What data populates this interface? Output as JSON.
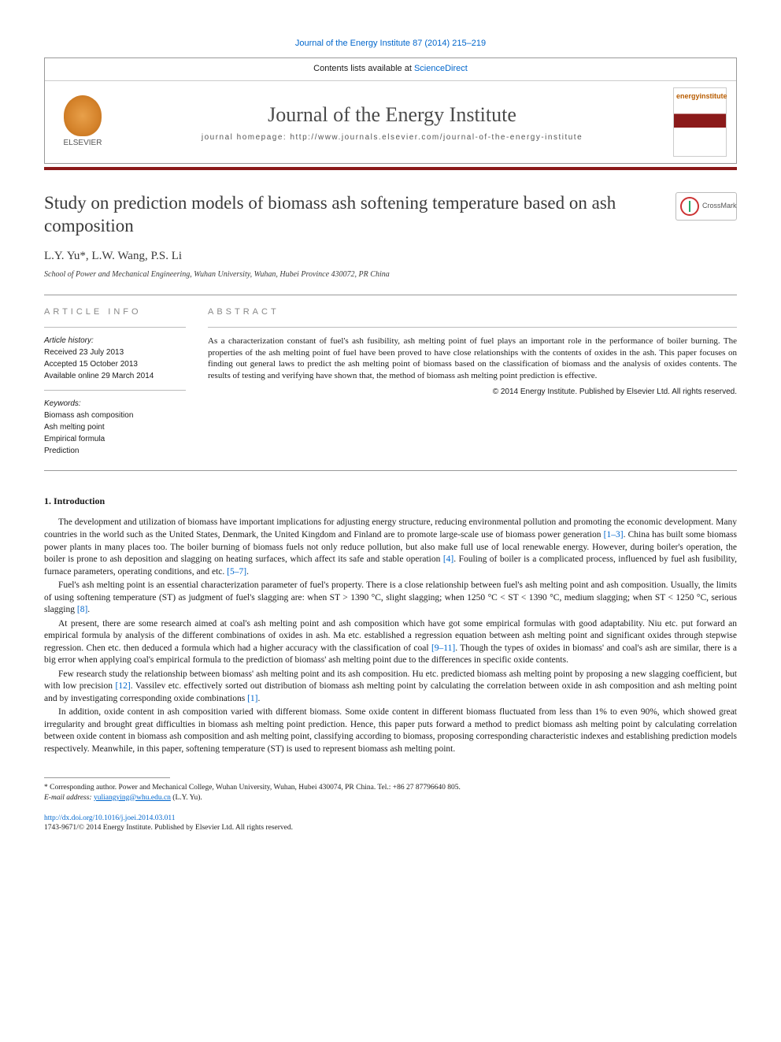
{
  "journal_ref": "Journal of the Energy Institute 87 (2014) 215–219",
  "header": {
    "contents_prefix": "Contents lists available at ",
    "contents_link": "ScienceDirect",
    "journal_title": "Journal of the Energy Institute",
    "homepage_label": "journal homepage: http://www.journals.elsevier.com/journal-of-the-energy-institute",
    "elsevier_label": "ELSEVIER",
    "cover_label": "energyinstitute"
  },
  "crossmark_label": "CrossMark",
  "title": "Study on prediction models of biomass ash softening temperature based on ash composition",
  "authors": "L.Y. Yu*, L.W. Wang, P.S. Li",
  "affiliation": "School of Power and Mechanical Engineering, Wuhan University, Wuhan, Hubei Province 430072, PR China",
  "info": {
    "heading": "ARTICLE INFO",
    "history_label": "Article history:",
    "received": "Received 23 July 2013",
    "accepted": "Accepted 15 October 2013",
    "online": "Available online 29 March 2014",
    "keywords_label": "Keywords:",
    "keywords": [
      "Biomass ash composition",
      "Ash melting point",
      "Empirical formula",
      "Prediction"
    ]
  },
  "abstract": {
    "heading": "ABSTRACT",
    "text": "As a characterization constant of fuel's ash fusibility, ash melting point of fuel plays an important role in the performance of boiler burning. The properties of the ash melting point of fuel have been proved to have close relationships with the contents of oxides in the ash. This paper focuses on finding out general laws to predict the ash melting point of biomass based on the classification of biomass and the analysis of oxides contents. The results of testing and verifying have shown that, the method of biomass ash melting point prediction is effective.",
    "copyright": "© 2014 Energy Institute. Published by Elsevier Ltd. All rights reserved."
  },
  "section1_heading": "1. Introduction",
  "paragraphs": {
    "p1a": "The development and utilization of biomass have important implications for adjusting energy structure, reducing environmental pollution and promoting the economic development. Many countries in the world such as the United States, Denmark, the United Kingdom and Finland are to promote large-scale use of biomass power generation ",
    "p1_ref1": "[1–3]",
    "p1b": ". China has built some biomass power plants in many places too. The boiler burning of biomass fuels not only reduce pollution, but also make full use of local renewable energy. However, during boiler's operation, the boiler is prone to ash deposition and slagging on heating surfaces, which affect its safe and stable operation ",
    "p1_ref2": "[4]",
    "p1c": ". Fouling of boiler is a complicated process, influenced by fuel ash fusibility, furnace parameters, operating conditions, and etc. ",
    "p1_ref3": "[5–7]",
    "p1d": ".",
    "p2a": "Fuel's ash melting point is an essential characterization parameter of fuel's property. There is a close relationship between fuel's ash melting point and ash composition. Usually, the limits of using softening temperature (ST) as judgment of fuel's slagging are: when ST > 1390 °C, slight slagging; when 1250 °C < ST < 1390 °C, medium slagging; when ST < 1250 °C, serious slagging ",
    "p2_ref1": "[8]",
    "p2b": ".",
    "p3a": "At present, there are some research aimed at coal's ash melting point and ash composition which have got some empirical formulas with good adaptability. Niu etc. put forward an empirical formula by analysis of the different combinations of oxides in ash. Ma etc. established a regression equation between ash melting point and significant oxides through stepwise regression. Chen etc. then deduced a formula which had a higher accuracy with the classification of coal ",
    "p3_ref1": "[9–11]",
    "p3b": ". Though the types of oxides in biomass' and coal's ash are similar, there is a big error when applying coal's empirical formula to the prediction of biomass' ash melting point due to the differences in specific oxide contents.",
    "p4a": "Few research study the relationship between biomass' ash melting point and its ash composition. Hu etc. predicted biomass ash melting point by proposing a new slagging coefficient, but with low precision ",
    "p4_ref1": "[12]",
    "p4b": ". Vassilev etc. effectively sorted out distribution of biomass ash melting point by calculating the correlation between oxide in ash composition and ash melting point and by investigating corresponding oxide combinations ",
    "p4_ref2": "[1]",
    "p4c": ".",
    "p5": "In addition, oxide content in ash composition varied with different biomass. Some oxide content in different biomass fluctuated from less than 1% to even 90%, which showed great irregularity and brought great difficulties in biomass ash melting point prediction. Hence, this paper puts forward a method to predict biomass ash melting point by calculating correlation between oxide content in biomass ash composition and ash melting point, classifying according to biomass, proposing corresponding characteristic indexes and establishing prediction models respectively. Meanwhile, in this paper, softening temperature (ST) is used to represent biomass ash melting point."
  },
  "footer": {
    "corresponding": "* Corresponding author. Power and Mechanical College, Wuhan University, Wuhan, Hubei 430074, PR China. Tel.: +86 27 87796640 805.",
    "email_label": "E-mail address: ",
    "email": "yuliangying@whu.edu.cn",
    "email_suffix": " (L.Y. Yu).",
    "doi": "http://dx.doi.org/10.1016/j.joei.2014.03.011",
    "issn_line": "1743-9671/© 2014 Energy Institute. Published by Elsevier Ltd. All rights reserved."
  },
  "colors": {
    "link": "#0066cc",
    "red_bar": "#8b1a1a",
    "text": "#1a1a1a",
    "muted": "#888888"
  }
}
